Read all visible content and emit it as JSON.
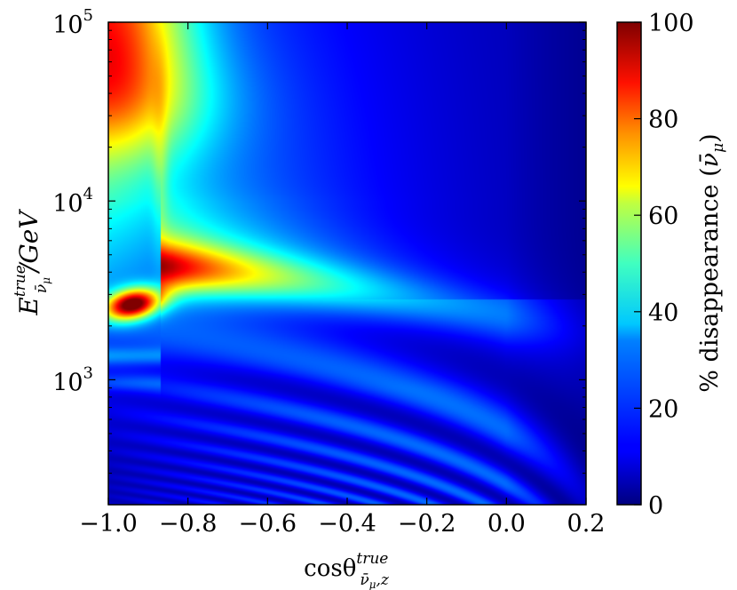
{
  "chart_data": {
    "type": "heatmap",
    "title": "",
    "x_axis": {
      "label_base": "cosθ",
      "label_sup": "true",
      "label_sub": "ν̄",
      "label_sub_sub": "μ",
      "label_sub_tail": ",z",
      "range": [
        -1.0,
        0.2
      ],
      "ticks": [
        -1.0,
        -0.8,
        -0.6,
        -0.4,
        -0.2,
        0.0,
        0.2
      ],
      "tick_labels": [
        "−1.0",
        "−0.8",
        "−0.6",
        "−0.4",
        "−0.2",
        "0.0",
        "0.2"
      ]
    },
    "y_axis": {
      "label_base": "E",
      "label_sup": "true",
      "label_sub": "ν̄",
      "label_sub_sub": "μ",
      "label_tail": "/GeV",
      "scale": "log",
      "range": [
        200,
        100000
      ],
      "ticks": [
        1000,
        10000,
        100000
      ],
      "tick_base": "10",
      "tick_exponents": [
        "3",
        "4",
        "5"
      ]
    },
    "colorbar": {
      "label": "% disappearance (",
      "label_symbol": "ν̄",
      "label_symbol_sub": "μ",
      "label_close": ")",
      "range": [
        0,
        100
      ],
      "ticks": [
        0,
        20,
        40,
        60,
        80,
        100
      ],
      "tick_labels": [
        "0",
        "20",
        "40",
        "60",
        "80",
        "100"
      ],
      "colormap": "jet"
    },
    "features": [
      {
        "cos_theta": -1.0,
        "energy_gev": 2500,
        "disappearance_pct": 100
      },
      {
        "cos_theta": -0.84,
        "energy_gev": 4200,
        "disappearance_pct": 68
      },
      {
        "cos_theta": -0.6,
        "energy_gev": 3600,
        "disappearance_pct": 40
      },
      {
        "cos_theta": -1.0,
        "energy_gev": 90000,
        "disappearance_pct": 62
      },
      {
        "cos_theta": -0.2,
        "energy_gev": 1800,
        "disappearance_pct": 25
      },
      {
        "cos_theta": 0.1,
        "energy_gev": 10000,
        "disappearance_pct": 2
      }
    ]
  }
}
